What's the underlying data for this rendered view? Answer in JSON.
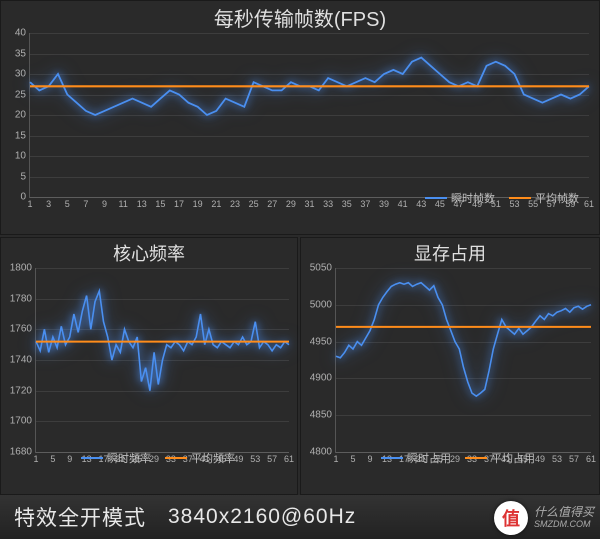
{
  "colors": {
    "page_bg": "#2a2a2a",
    "series_instant": "#4a8ff0",
    "series_avg": "#ff8c1a",
    "grid": "rgba(120,120,120,0.25)",
    "axis": "#555555",
    "text": "#d0d0d0"
  },
  "fps_chart": {
    "type": "line",
    "title": "每秒传输帧数(FPS)",
    "title_fontsize": 20,
    "ylim": [
      0,
      40
    ],
    "ytick_step": 5,
    "xlim": [
      1,
      61
    ],
    "xtick_step": 2,
    "legend_position": "bottom-right",
    "series": [
      {
        "name": "瞬时帧数",
        "color": "#4a8ff0",
        "glow": true,
        "line_width": 1.8,
        "values": [
          28,
          26,
          27,
          30,
          25,
          23,
          21,
          20,
          21,
          22,
          23,
          24,
          23,
          22,
          24,
          26,
          25,
          23,
          22,
          20,
          21,
          24,
          23,
          22,
          28,
          27,
          26,
          26,
          28,
          27,
          27,
          26,
          29,
          28,
          27,
          28,
          29,
          28,
          30,
          31,
          30,
          33,
          34,
          32,
          30,
          28,
          27,
          28,
          27,
          32,
          33,
          32,
          30,
          25,
          24,
          23,
          24,
          25,
          24,
          25,
          27
        ]
      },
      {
        "name": "平均帧数",
        "color": "#ff8c1a",
        "glow": false,
        "line_width": 2.2,
        "constant": 27
      }
    ]
  },
  "core_chart": {
    "type": "line",
    "title": "核心频率",
    "title_fontsize": 18,
    "ylim": [
      1680,
      1800
    ],
    "ytick_step": 20,
    "xlim": [
      1,
      61
    ],
    "xtick_step": 4,
    "legend_position": "bottom-center",
    "series": [
      {
        "name": "瞬时频率",
        "color": "#4a8ff0",
        "glow": true,
        "line_width": 1.6,
        "values": [
          1752,
          1746,
          1760,
          1745,
          1755,
          1748,
          1762,
          1750,
          1755,
          1770,
          1758,
          1772,
          1782,
          1760,
          1778,
          1785,
          1765,
          1755,
          1740,
          1750,
          1745,
          1760,
          1752,
          1748,
          1755,
          1726,
          1735,
          1720,
          1745,
          1724,
          1740,
          1750,
          1748,
          1752,
          1750,
          1746,
          1752,
          1750,
          1755,
          1770,
          1750,
          1760,
          1750,
          1748,
          1752,
          1750,
          1748,
          1752,
          1750,
          1755,
          1750,
          1752,
          1765,
          1748,
          1752,
          1750,
          1746,
          1750,
          1748,
          1752,
          1750
        ]
      },
      {
        "name": "平均频率",
        "color": "#ff8c1a",
        "glow": false,
        "line_width": 2.0,
        "constant": 1752
      }
    ]
  },
  "vram_chart": {
    "type": "line",
    "title": "显存占用",
    "title_fontsize": 18,
    "ylim": [
      4800,
      5050
    ],
    "ytick_step": 50,
    "xlim": [
      1,
      61
    ],
    "xtick_step": 4,
    "legend_position": "bottom-center",
    "series": [
      {
        "name": "瞬时占用",
        "color": "#4a8ff0",
        "glow": true,
        "line_width": 1.6,
        "values": [
          4930,
          4928,
          4935,
          4945,
          4940,
          4950,
          4945,
          4955,
          4965,
          4980,
          5000,
          5010,
          5018,
          5025,
          5028,
          5030,
          5028,
          5030,
          5025,
          5028,
          5030,
          5025,
          5020,
          5026,
          5010,
          5000,
          4980,
          4965,
          4950,
          4940,
          4915,
          4895,
          4880,
          4876,
          4880,
          4885,
          4910,
          4940,
          4960,
          4980,
          4970,
          4965,
          4960,
          4968,
          4960,
          4965,
          4970,
          4978,
          4985,
          4980,
          4988,
          4985,
          4990,
          4992,
          4995,
          4990,
          4996,
          4998,
          4994,
          4998,
          5000
        ]
      },
      {
        "name": "平均占用",
        "color": "#ff8c1a",
        "glow": false,
        "line_width": 2.0,
        "constant": 4970
      }
    ]
  },
  "footer": {
    "mode": "特效全开模式",
    "resolution": "3840x2160@60Hz"
  },
  "watermark": {
    "badge": "值",
    "line1": "什么值得买",
    "line2": "SMZDM.COM"
  }
}
